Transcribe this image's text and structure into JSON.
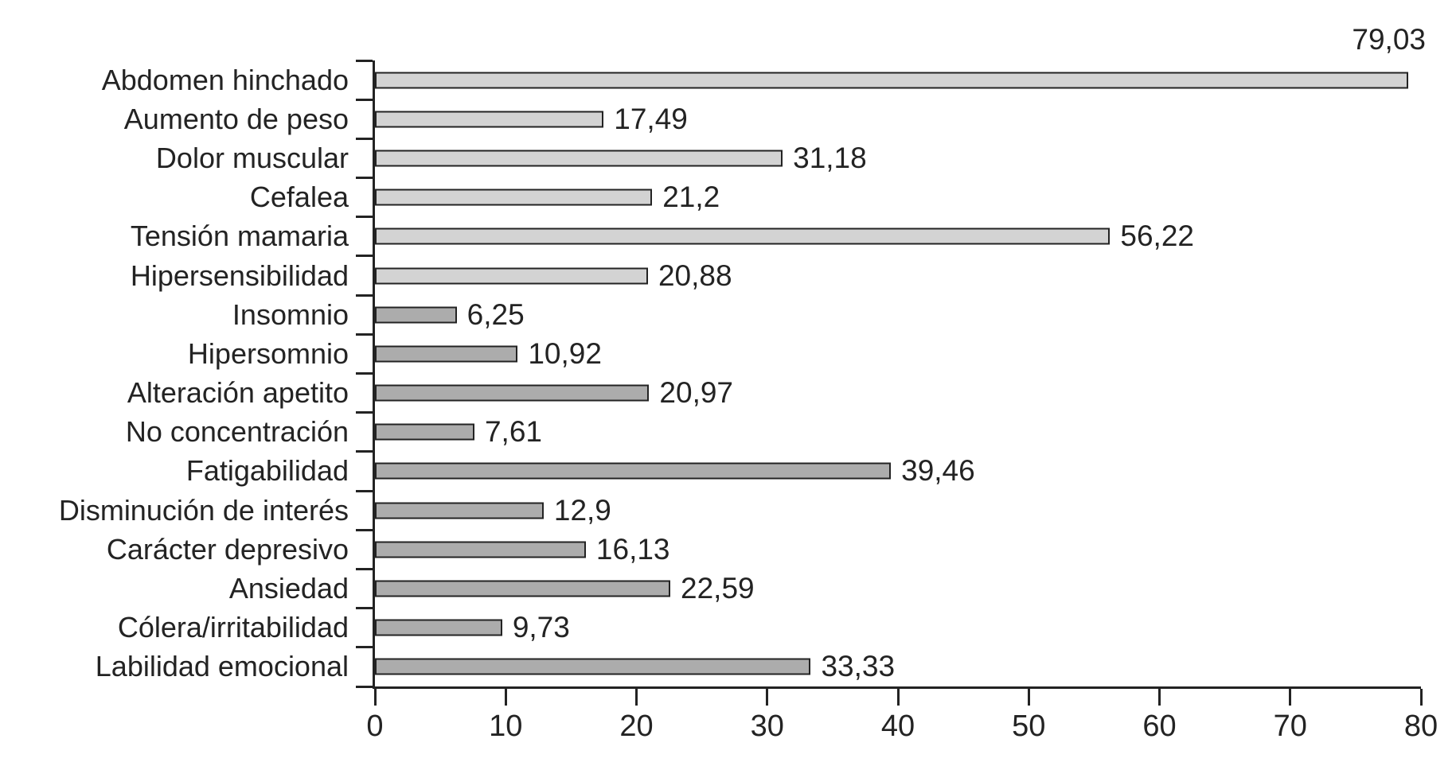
{
  "chart_data": {
    "type": "bar",
    "orientation": "horizontal",
    "title": "",
    "xlabel": "",
    "ylabel": "",
    "xlim": [
      0,
      80
    ],
    "x_ticks": [
      0,
      10,
      20,
      30,
      40,
      50,
      60,
      70,
      80
    ],
    "grid": false,
    "legend": false,
    "decimal_separator": ",",
    "categories": [
      "Abdomen hinchado",
      "Aumento de peso",
      "Dolor muscular",
      "Cefalea",
      "Tensión mamaria",
      "Hipersensibilidad",
      "Insomnio",
      "Hipersomnio",
      "Alteración apetito",
      "No concentración",
      "Fatigabilidad",
      "Disminución de interés",
      "Carácter depresivo",
      "Ansiedad",
      "Cólera/irritabilidad",
      "Labilidad emocional"
    ],
    "values": [
      79.03,
      17.49,
      31.18,
      21.2,
      56.22,
      20.88,
      6.25,
      10.92,
      20.97,
      7.61,
      39.46,
      12.9,
      16.13,
      22.59,
      9.73,
      33.33
    ],
    "value_labels": [
      "79,03",
      "17,49",
      "31,18",
      "21,2",
      "56,22",
      "20,88",
      "6,25",
      "10,92",
      "20,97",
      "7,61",
      "39,46",
      "12,9",
      "16,13",
      "22,59",
      "9,73",
      "33,33"
    ],
    "bar_colors": [
      "#d3d3d3",
      "#d3d3d3",
      "#d3d3d3",
      "#d3d3d3",
      "#d3d3d3",
      "#d3d3d3",
      "#acacac",
      "#acacac",
      "#acacac",
      "#acacac",
      "#acacac",
      "#acacac",
      "#acacac",
      "#acacac",
      "#acacac",
      "#acacac"
    ],
    "bar_border_color": "#232323",
    "axis_color": "#232323",
    "text_color": "#232323",
    "first_value_label_position": "above-bar-end"
  }
}
